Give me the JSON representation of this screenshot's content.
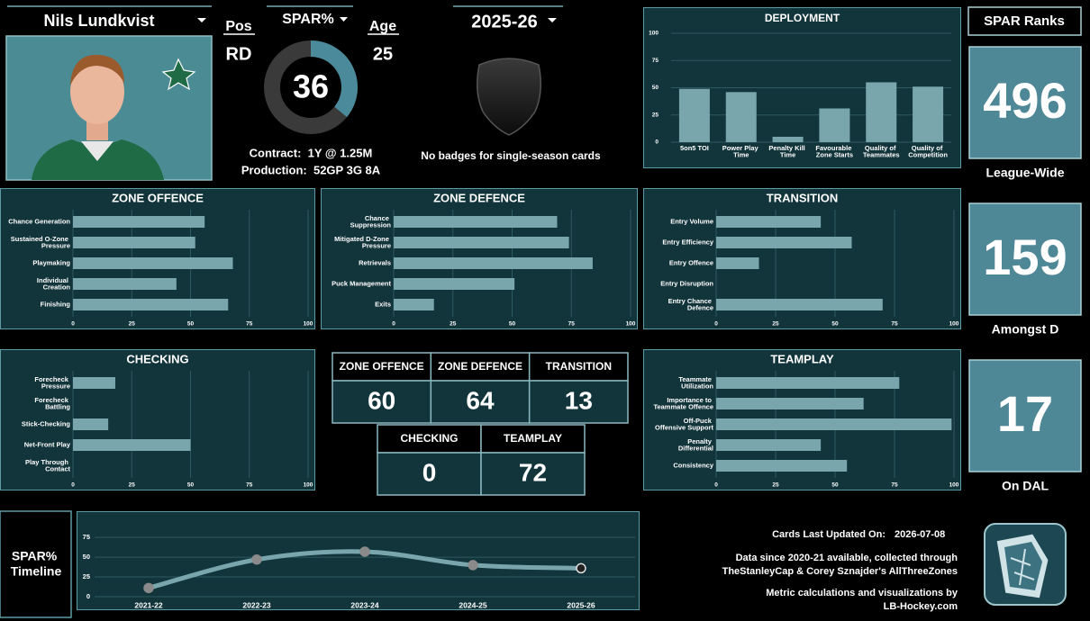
{
  "player": {
    "name": "Nils Lundkvist",
    "pos_label": "Pos",
    "pos": "RD",
    "age_label": "Age",
    "age": 25,
    "contract": "Contract:  1Y @ 1.25M",
    "production": "Production:  52GP 3G 8A"
  },
  "spar": {
    "label": "SPAR%",
    "value": 36,
    "color": "#4a8a9a"
  },
  "season": "2025-26",
  "badges_note": "No badges for single-season cards",
  "ranks": {
    "title": "SPAR Ranks",
    "items": [
      {
        "value": 496,
        "label": "League-Wide"
      },
      {
        "value": 159,
        "label": "Amongst D"
      },
      {
        "value": 17,
        "label": "On DAL"
      }
    ]
  },
  "scores": {
    "rows": [
      [
        {
          "name": "ZONE OFFENCE",
          "value": 60
        },
        {
          "name": "ZONE DEFENCE",
          "value": 64
        },
        {
          "name": "TRANSITION",
          "value": 13
        }
      ],
      [
        {
          "name": "CHECKING",
          "value": 0
        },
        {
          "name": "TEAMPLAY",
          "value": 72
        }
      ]
    ]
  },
  "timeline_label": "SPAR% Timeline",
  "footer": {
    "updated_label": "Cards Last Updated On:",
    "updated": "2026-07-08",
    "credits": [
      "Data since 2020-21 available, collected through",
      "TheStanleyCap & Corey Sznajder's AllThreeZones",
      "Metric calculations and visualizations by",
      "LB-Hockey.com"
    ]
  },
  "chart_data": [
    {
      "type": "bar",
      "title": "DEPLOYMENT",
      "categories": [
        "5on5 TOI",
        "Power Play Time",
        "Penalty Kill Time",
        "Favourable Zone Starts",
        "Quality of Teammates",
        "Quality of Competition"
      ],
      "values": [
        49,
        46,
        5,
        31,
        55,
        51
      ],
      "color": "#79a6ad",
      "ylim": [
        0,
        100
      ],
      "yticks": [
        0,
        25,
        50,
        75,
        100
      ],
      "grid": true
    },
    {
      "type": "hbar",
      "title": "ZONE OFFENCE",
      "categories": [
        "Chance Generation",
        "Sustained O-Zone Pressure",
        "Playmaking",
        "Individual Creation",
        "Finishing"
      ],
      "values": [
        56,
        52,
        68,
        44,
        66
      ],
      "color": "#79a6ad",
      "xlim": [
        0,
        100
      ],
      "xticks": [
        0,
        25,
        50,
        75,
        100
      ],
      "grid": true
    },
    {
      "type": "hbar",
      "title": "ZONE DEFENCE",
      "categories": [
        "Chance Suppression",
        "Mitigated D-Zone Pressure",
        "Retrievals",
        "Puck Management",
        "Exits"
      ],
      "values": [
        69,
        74,
        84,
        51,
        17
      ],
      "color": "#79a6ad",
      "xlim": [
        0,
        100
      ],
      "xticks": [
        0,
        25,
        50,
        75,
        100
      ],
      "grid": true
    },
    {
      "type": "hbar",
      "title": "TRANSITION",
      "categories": [
        "Entry Volume",
        "Entry Efficiency",
        "Entry Offence",
        "Entry Disruption",
        "Entry Chance Defence"
      ],
      "values": [
        44,
        57,
        18,
        0,
        70
      ],
      "color": "#79a6ad",
      "xlim": [
        0,
        100
      ],
      "xticks": [
        0,
        25,
        50,
        75,
        100
      ],
      "grid": true
    },
    {
      "type": "hbar",
      "title": "CHECKING",
      "categories": [
        "Forecheck Pressure",
        "Forecheck Battling",
        "Stick-Checking",
        "Net-Front Play",
        "Play Through Contact"
      ],
      "values": [
        18,
        0,
        15,
        50,
        0
      ],
      "color": "#79a6ad",
      "xlim": [
        0,
        100
      ],
      "xticks": [
        0,
        25,
        50,
        75,
        100
      ],
      "grid": true
    },
    {
      "type": "hbar",
      "title": "TEAMPLAY",
      "categories": [
        "Teammate Utilization",
        "Importance to Teammate Offence",
        "Off-Puck Offensive Support",
        "Penalty Differential",
        "Consistency"
      ],
      "values": [
        77,
        62,
        99,
        44,
        55
      ],
      "color": "#79a6ad",
      "xlim": [
        0,
        100
      ],
      "xticks": [
        0,
        25,
        50,
        75,
        100
      ],
      "grid": true
    },
    {
      "type": "line",
      "categories": [
        "2021-22",
        "2022-23",
        "2023-24",
        "2024-25",
        "2025-26"
      ],
      "values": [
        11,
        47,
        57,
        40,
        36
      ],
      "color": "#79a6ad",
      "ylim": [
        0,
        90
      ],
      "yticks": [
        0,
        25,
        50,
        75
      ],
      "grid": true
    }
  ]
}
